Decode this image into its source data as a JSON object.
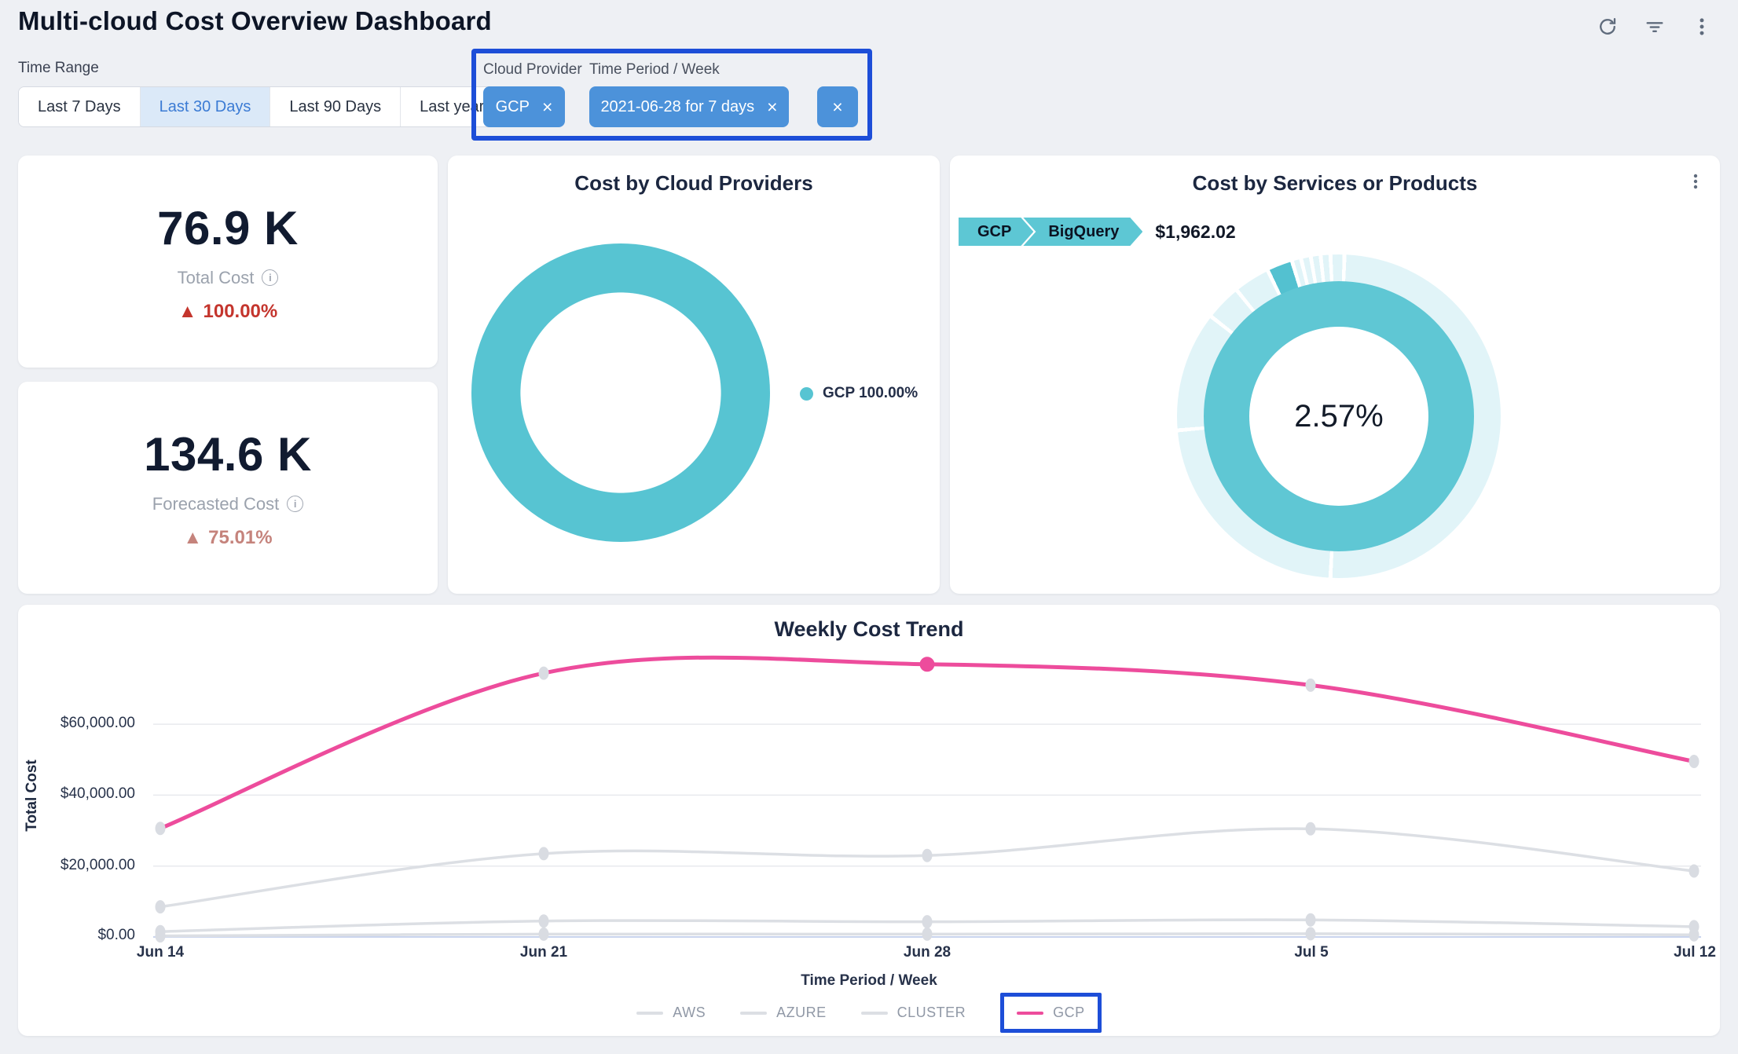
{
  "header": {
    "title": "Multi-cloud Cost Overview Dashboard"
  },
  "icons": {
    "close": "×",
    "delta_up": "▲",
    "info": "i"
  },
  "filters": {
    "time_range": {
      "label": "Time Range",
      "options": [
        {
          "label": "Last 7 Days",
          "selected": false
        },
        {
          "label": "Last 30 Days",
          "selected": true
        },
        {
          "label": "Last 90 Days",
          "selected": false
        },
        {
          "label": "Last year",
          "selected": false
        }
      ]
    },
    "cloud_provider": {
      "label": "Cloud Provider",
      "chip": "GCP"
    },
    "time_period": {
      "label": "Time Period / Week",
      "chip": "2021-06-28 for 7 days"
    },
    "accent_color": "#4c92da",
    "annotation_color": "#1d4ed8"
  },
  "kpis": [
    {
      "value": "76.9 K",
      "label": "Total Cost",
      "delta": "100.00%",
      "delta_direction": "up",
      "delta_color": "#c4352d"
    },
    {
      "value": "134.6 K",
      "label": "Forecasted Cost",
      "delta": "75.01%",
      "delta_direction": "up",
      "delta_color": "#c5837c"
    }
  ],
  "chart_data": [
    {
      "id": "cost-by-cloud-providers",
      "type": "pie",
      "title": "Cost by Cloud Providers",
      "slices": [
        {
          "label": "GCP",
          "value_pct": 100.0,
          "color": "#57c4d2"
        }
      ],
      "donut_hole_pct": 67,
      "legend_position": "right",
      "legend": [
        {
          "label": "GCP 100.00%",
          "color": "#57c4d2"
        }
      ]
    },
    {
      "id": "cost-by-services-or-products",
      "type": "pie",
      "title": "Cost by Services or Products",
      "breadcrumb": {
        "items": [
          "GCP",
          "BigQuery"
        ],
        "value": "$1,962.02"
      },
      "center_label": "2.57%",
      "inner_ring": {
        "label": "GCP",
        "value_pct": 100,
        "color": "#5fc7d4"
      },
      "outer_ring": {
        "base_color": "#e1f4f8",
        "separator_color": "#ffffff",
        "separators_deg": [
          2,
          183,
          265,
          308,
          321,
          334,
          343.2,
          346.5,
          350,
          353.5,
          357
        ],
        "highlight_segment": {
          "label": "BigQuery",
          "share_pct": 2.57,
          "start_deg": 334.7,
          "end_deg": 342.5,
          "color": "#53c1d0"
        }
      }
    },
    {
      "id": "weekly-cost-trend",
      "type": "line",
      "title": "Weekly Cost Trend",
      "xlabel": "Time Period / Week",
      "ylabel": "Total Cost",
      "x": [
        "Jun 14",
        "Jun 21",
        "Jun 28",
        "Jul 5",
        "Jul 12"
      ],
      "yticks": [
        {
          "value": 60000,
          "label": "$60,000.00"
        },
        {
          "value": 40000,
          "label": "$40,000.00"
        },
        {
          "value": 20000,
          "label": "$20,000.00"
        },
        {
          "value": 0,
          "label": "$0.00"
        }
      ],
      "ylim": [
        0,
        84000
      ],
      "grid": true,
      "grid_color": "#e8eaee",
      "baseline_color": "#c9d4ee",
      "point_color": "#d9dce2",
      "series": [
        {
          "name": "AWS",
          "color": "#dcdfe4",
          "values": [
            8500,
            23500,
            23000,
            30500,
            18600
          ]
        },
        {
          "name": "AZURE",
          "color": "#dcdfe4",
          "values": [
            1500,
            4500,
            4300,
            4800,
            2900
          ]
        },
        {
          "name": "CLUSTER",
          "color": "#dcdfe4",
          "values": [
            300,
            800,
            800,
            900,
            600
          ]
        },
        {
          "name": "GCP",
          "color": "#ed4c9c",
          "values": [
            30600,
            74400,
            76900,
            71000,
            49500
          ]
        }
      ],
      "highlight_point": {
        "series": "GCP",
        "x": "Jun 28",
        "color": "#ed4c9c"
      },
      "legend": [
        "AWS",
        "AZURE",
        "CLUSTER",
        "GCP"
      ],
      "legend_annotated": "GCP"
    }
  ]
}
